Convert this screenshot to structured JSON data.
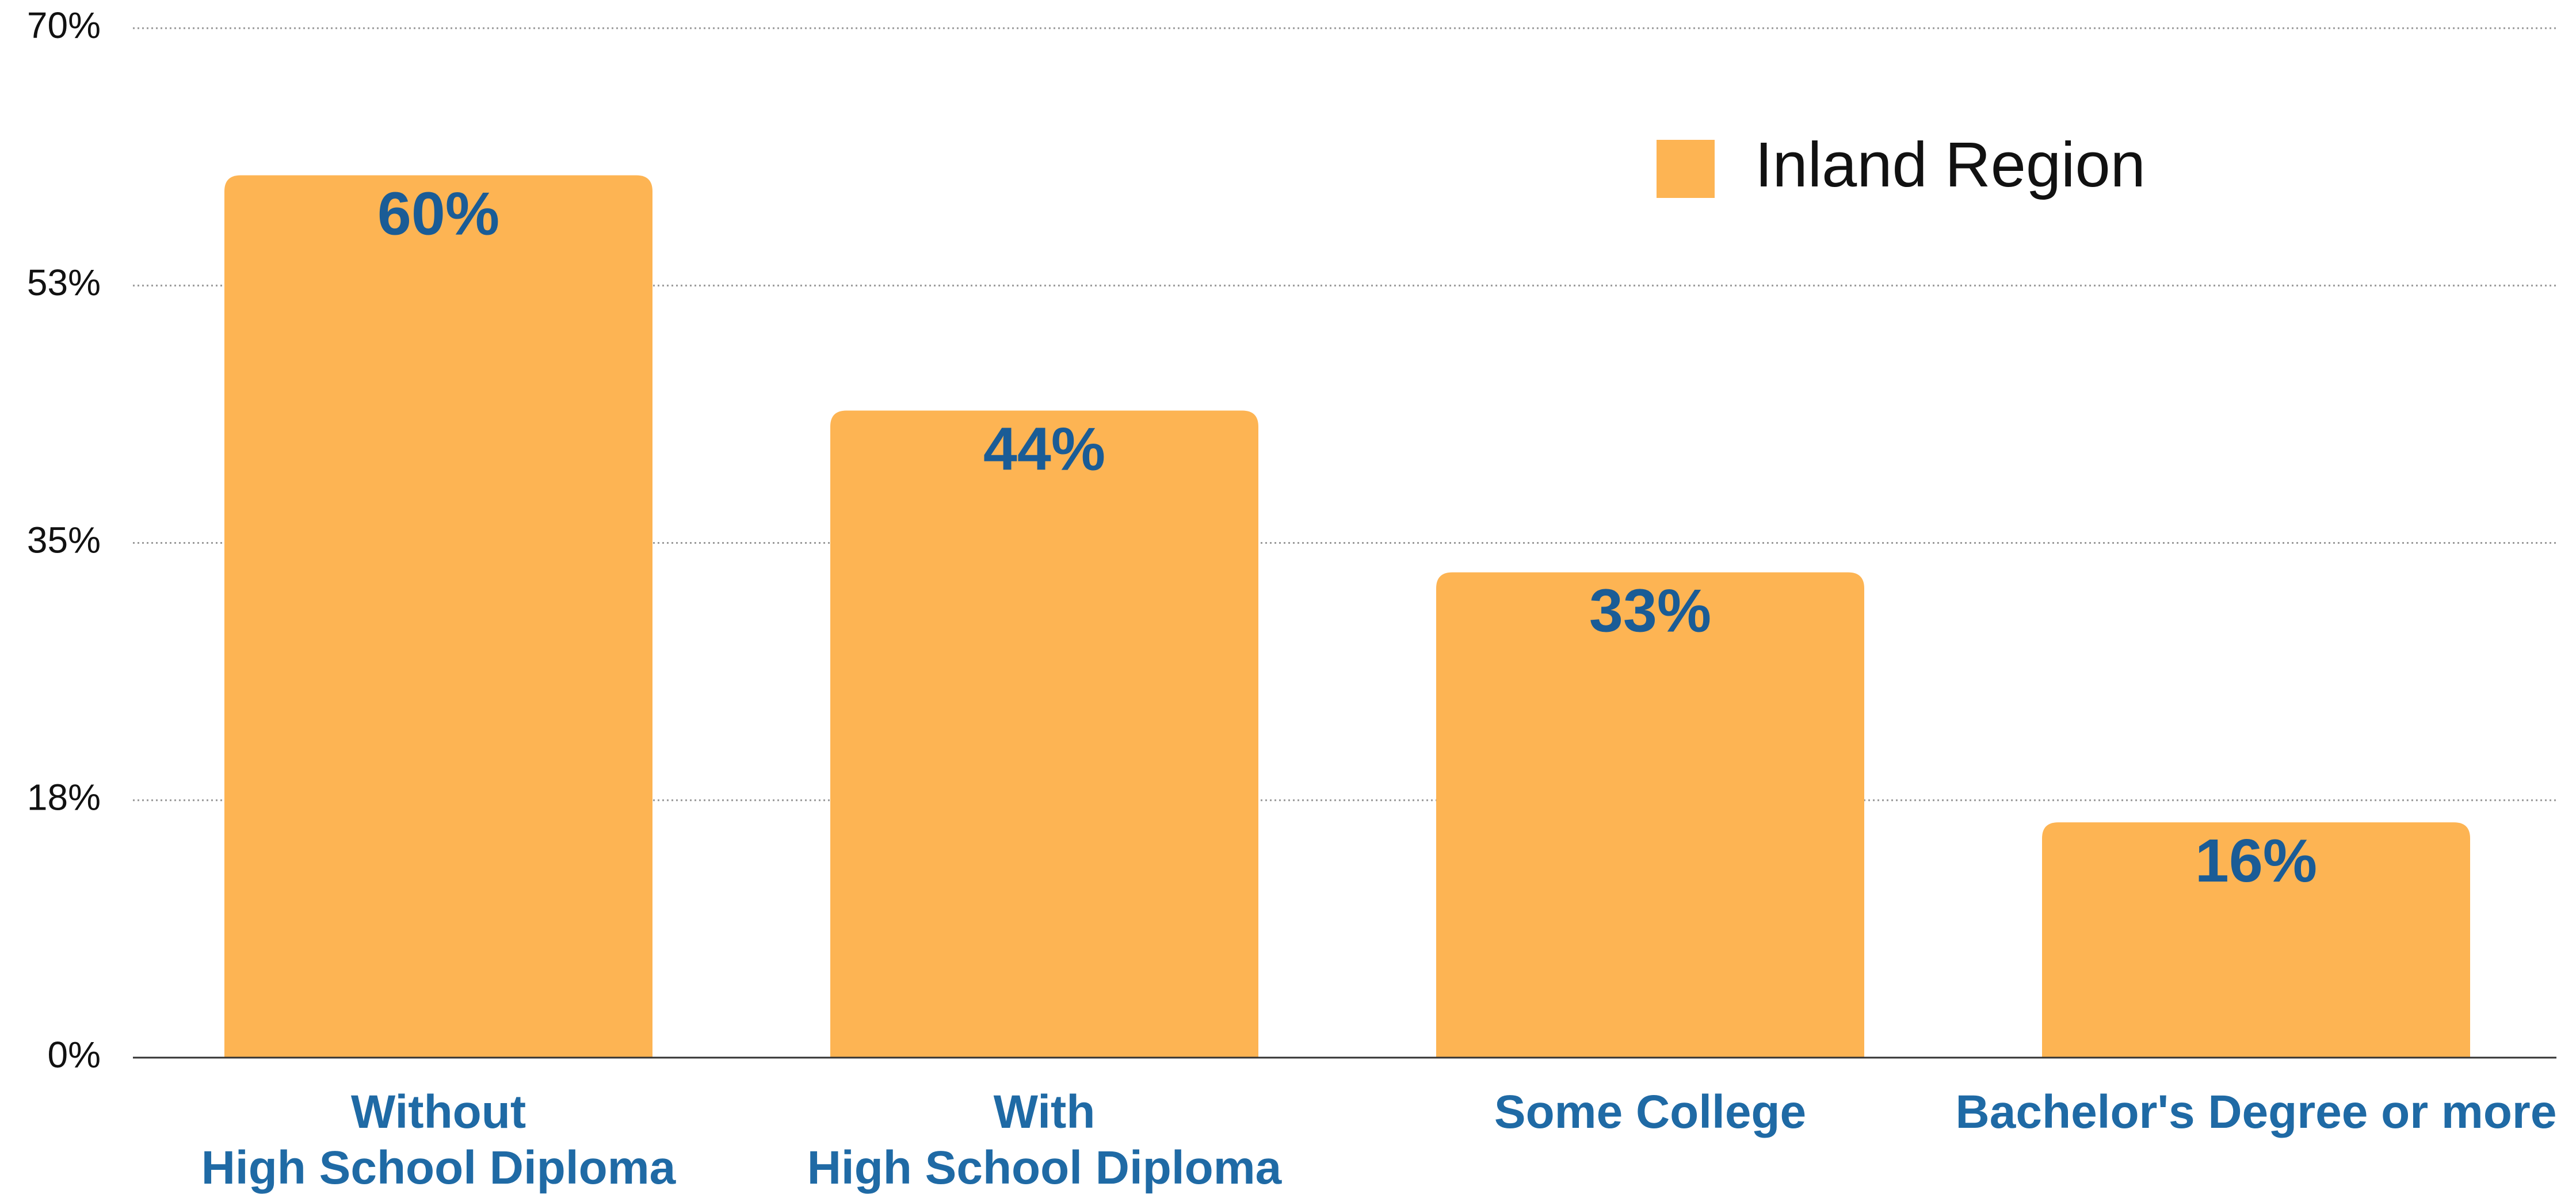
{
  "chart_data": {
    "type": "bar",
    "categories": [
      "Without\nHigh School Diploma",
      "With\nHigh School Diploma",
      "Some College",
      "Bachelor's Degree or more"
    ],
    "series": [
      {
        "name": "Inland Region",
        "color": "#fdb453",
        "values": [
          60,
          44,
          33,
          16
        ],
        "value_labels": [
          "60%",
          "44%",
          "33%",
          "16%"
        ]
      }
    ],
    "ylim": [
      0,
      70
    ],
    "yticks": [
      {
        "value": 0,
        "label": "0%"
      },
      {
        "value": 17.5,
        "label": "18%"
      },
      {
        "value": 35,
        "label": "35%"
      },
      {
        "value": 52.5,
        "label": "53%"
      },
      {
        "value": 70,
        "label": "70%"
      }
    ],
    "grid": true,
    "legend": "top-right"
  }
}
